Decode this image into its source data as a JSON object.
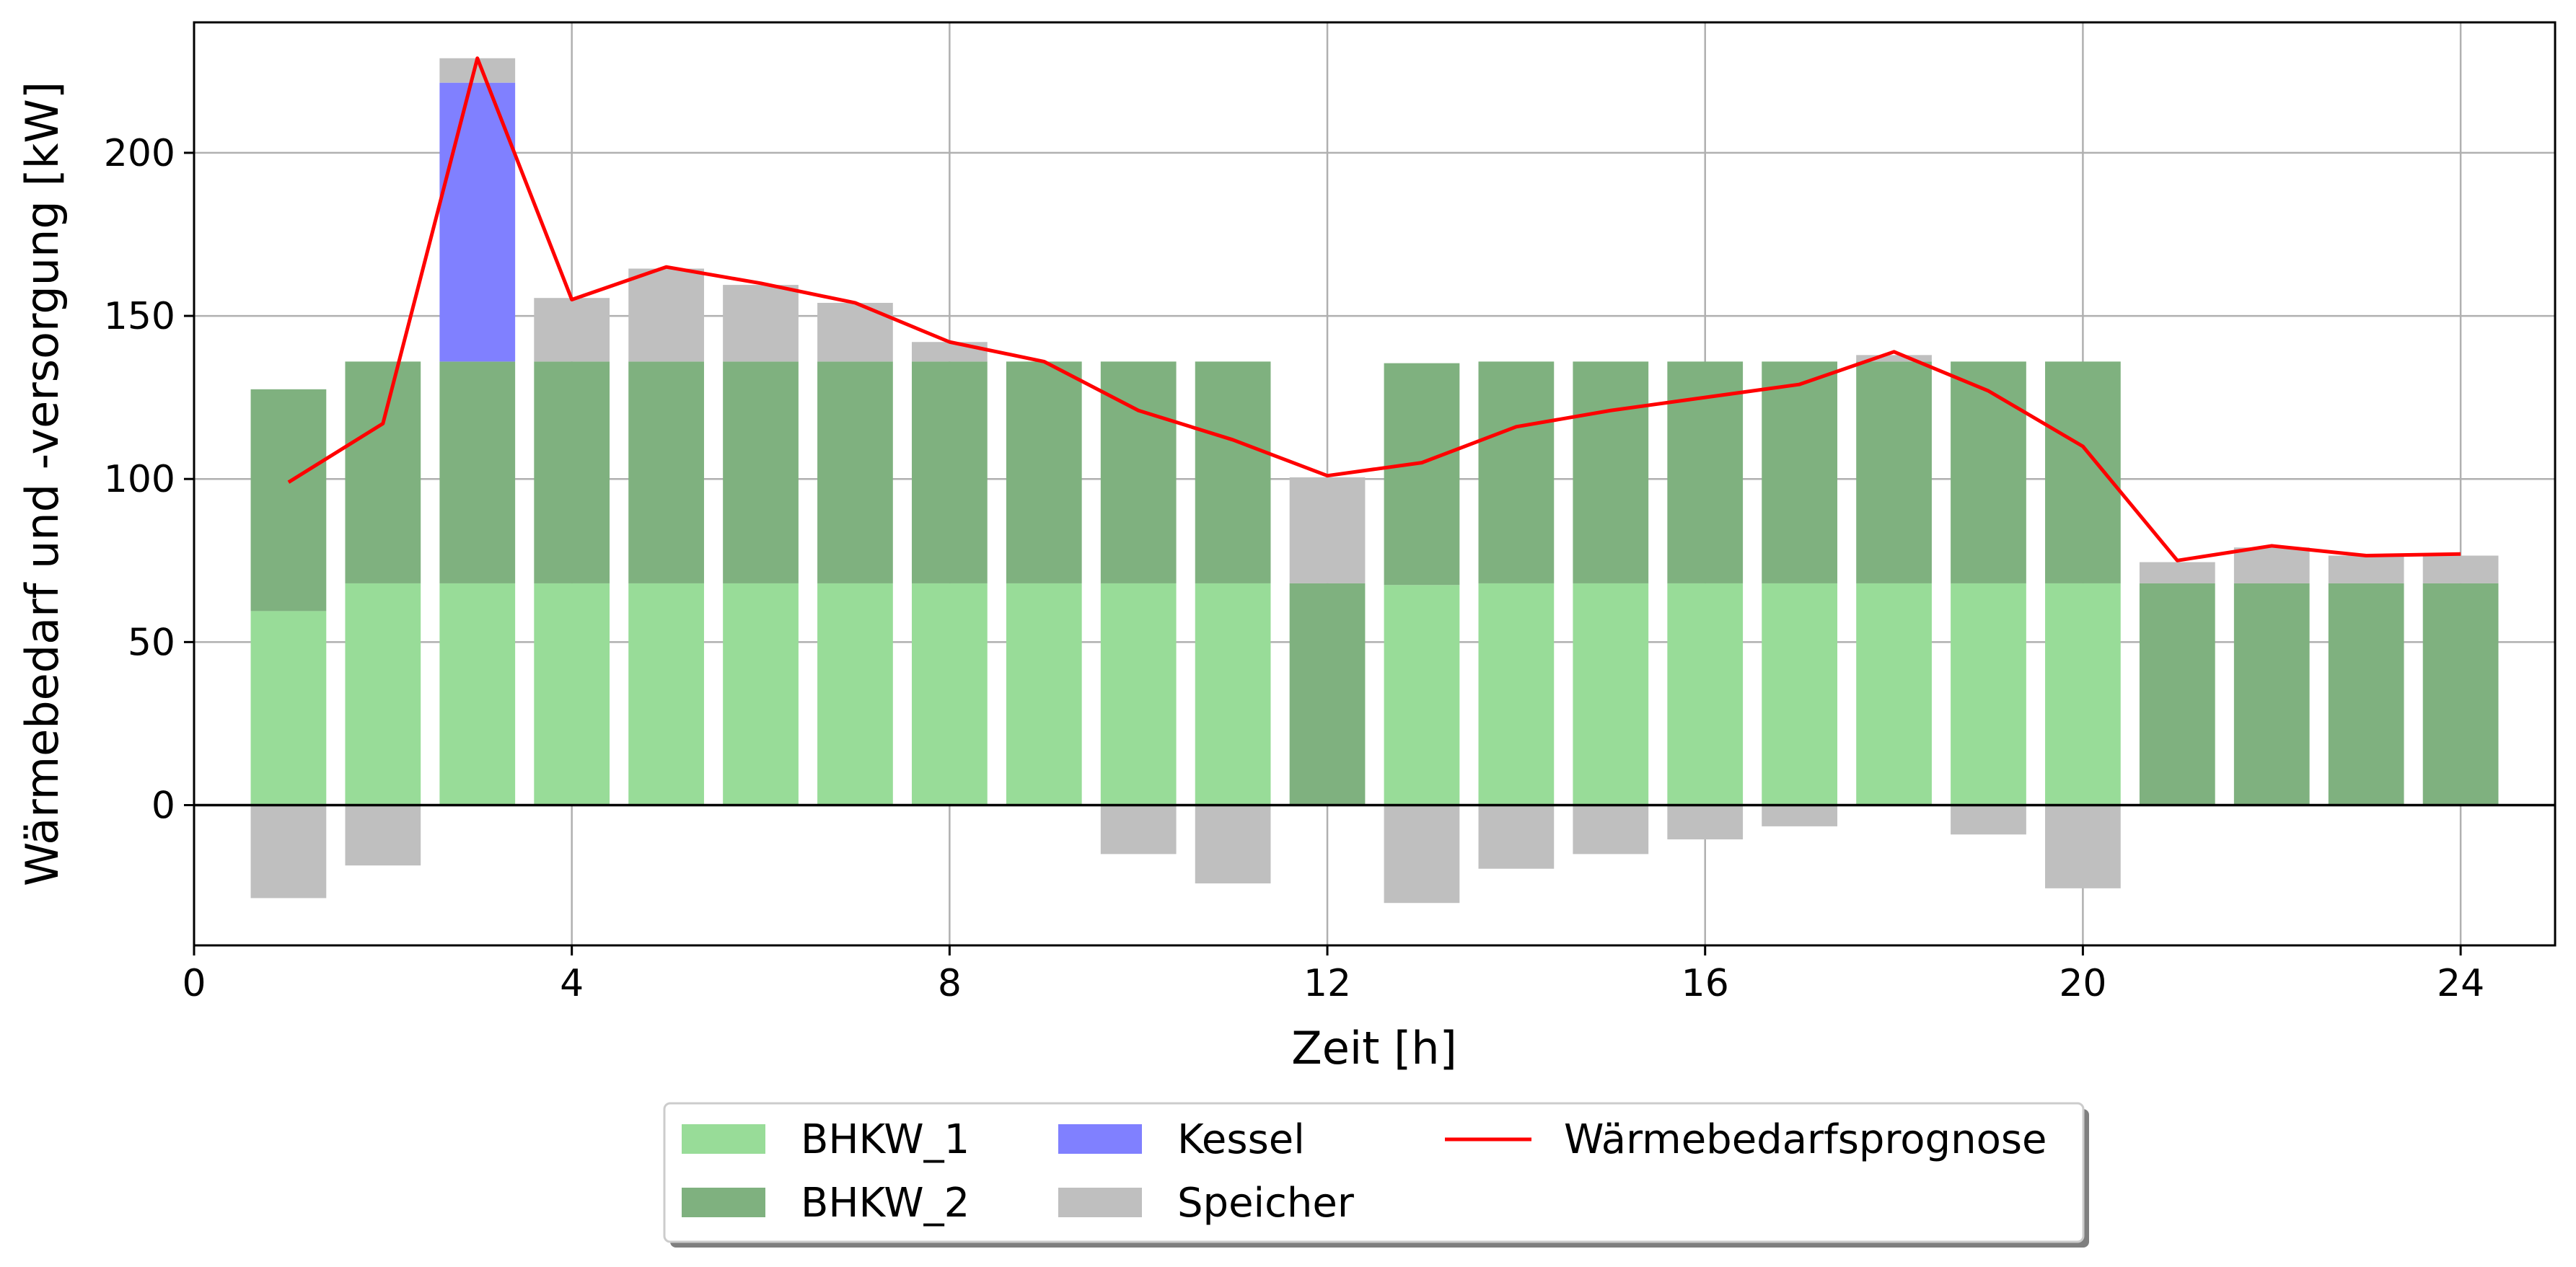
{
  "chart_data": {
    "type": "bar",
    "xlabel": "Zeit [h]",
    "ylabel": "Wärmebedarf und -versorgung [kW]",
    "xlim": [
      0,
      25
    ],
    "ylim": [
      -43,
      240
    ],
    "xticks": [
      0,
      4,
      8,
      12,
      16,
      20,
      24
    ],
    "yticks": [
      0,
      50,
      100,
      150,
      200
    ],
    "grid": true,
    "legend_position": "bottom-center",
    "x": [
      1,
      2,
      3,
      4,
      5,
      6,
      7,
      8,
      9,
      10,
      11,
      12,
      13,
      14,
      15,
      16,
      17,
      18,
      19,
      20,
      21,
      22,
      23,
      24
    ],
    "stacked_series": [
      {
        "name": "BHKW_1",
        "color": "#98dc98",
        "values": [
          59.5,
          68,
          68,
          68,
          68,
          68,
          68,
          68,
          68,
          68,
          68,
          0,
          67.5,
          68,
          68,
          68,
          68,
          68,
          68,
          68,
          0,
          0,
          0,
          0
        ]
      },
      {
        "name": "BHKW_2",
        "color": "#7fb17f",
        "values": [
          68,
          68,
          68,
          68,
          68,
          68,
          68,
          68,
          68,
          68,
          68,
          68,
          68,
          68,
          68,
          68,
          68,
          68,
          68,
          68,
          68,
          68,
          68,
          68
        ]
      },
      {
        "name": "Kessel",
        "color": "#8080ff",
        "values": [
          0,
          0,
          85.5,
          0,
          0,
          0,
          0,
          0,
          0,
          0,
          0,
          0,
          0,
          0,
          0,
          0,
          0,
          0,
          0,
          0,
          0,
          0,
          0,
          0
        ]
      },
      {
        "name": "Speicher",
        "color": "#bfbfbf",
        "values": [
          -28.5,
          -18.5,
          7.5,
          19.5,
          28.5,
          23.5,
          18,
          6,
          0,
          -15,
          -24,
          32.5,
          -30,
          -19.5,
          -15,
          -10.5,
          -6.5,
          2,
          -9,
          -25.5,
          6.5,
          11,
          8.5,
          8.5
        ]
      }
    ],
    "line_series": {
      "name": "Wärmebedarfsprognose",
      "color": "#ff0000",
      "values": [
        99,
        117,
        229,
        155,
        165,
        160,
        154,
        142,
        136,
        121,
        112,
        101,
        105,
        116,
        121,
        125,
        129,
        139,
        127,
        110,
        75,
        79.5,
        76.5,
        77
      ]
    }
  }
}
